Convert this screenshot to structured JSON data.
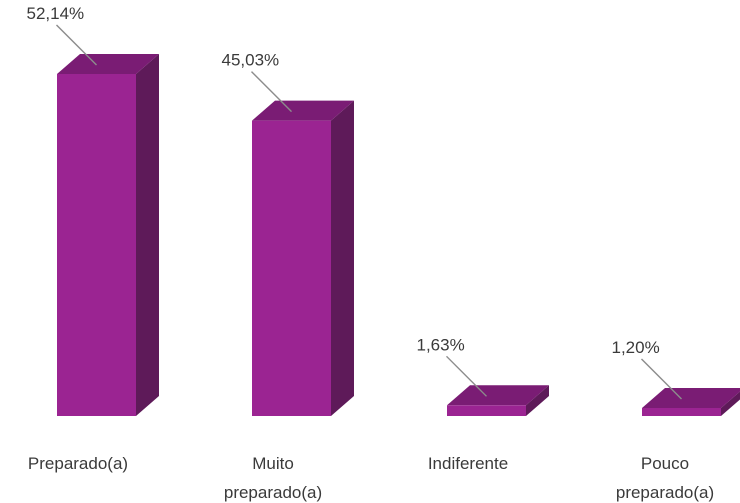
{
  "chart_data": {
    "type": "bar",
    "style": "3d-column",
    "categories": [
      "Preparado(a)",
      "Muito preparado(a)",
      "Indiferente",
      "Pouco preparado(a)"
    ],
    "category_lines": [
      [
        "Preparado(a)"
      ],
      [
        "Muito",
        "preparado(a)"
      ],
      [
        "Indiferente"
      ],
      [
        "Pouco",
        "preparado(a)"
      ]
    ],
    "values": [
      52.14,
      45.03,
      1.63,
      1.2
    ],
    "value_labels": [
      "52,14%",
      "45,03%",
      "1,63%",
      "1,20%"
    ],
    "unit": "%",
    "ylim": [
      0,
      52.14
    ],
    "grid": false,
    "legend": "none",
    "colors": {
      "front": "#9b2492",
      "top": "#7a1c74",
      "side": "#5e1a59",
      "leader": "#8c8c8c",
      "text": "#3a3a3a"
    }
  }
}
